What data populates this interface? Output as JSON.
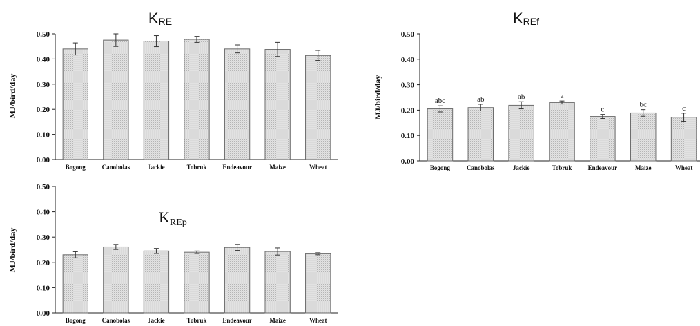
{
  "chart_data": [
    {
      "type": "bar",
      "title": "K",
      "title_sub": "RE",
      "ylabel": "MJ/bird/day",
      "categories": [
        "Bogong",
        "Canobolas",
        "Jackie",
        "Tobruk",
        "Endeavour",
        "Maize",
        "Wheat"
      ],
      "values": [
        0.44,
        0.475,
        0.471,
        0.478,
        0.44,
        0.438,
        0.414
      ],
      "errors": [
        0.024,
        0.025,
        0.022,
        0.012,
        0.016,
        0.028,
        0.02
      ],
      "ylim": [
        0,
        0.5
      ],
      "yticks": [
        "0.00",
        "0.10",
        "0.20",
        "0.30",
        "0.40",
        "0.50"
      ],
      "bar_color": "#d6d6d6",
      "annotations": []
    },
    {
      "type": "bar",
      "title": "K",
      "title_sub": "REf",
      "ylabel": "MJ/bird/day",
      "categories": [
        "Bogong",
        "Canobolas",
        "Jackie",
        "Tobruk",
        "Endeavour",
        "Maize",
        "Wheat"
      ],
      "values": [
        0.205,
        0.21,
        0.219,
        0.23,
        0.175,
        0.189,
        0.172
      ],
      "errors": [
        0.012,
        0.013,
        0.014,
        0.006,
        0.008,
        0.013,
        0.016
      ],
      "ylim": [
        0,
        0.5
      ],
      "yticks": [
        "0.00",
        "0.10",
        "0.20",
        "0.30",
        "0.40",
        "0.50"
      ],
      "bar_color": "#d6d6d6",
      "annotations": [
        "abc",
        "ab",
        "ab",
        "a",
        "c",
        "bc",
        "c"
      ]
    },
    {
      "type": "bar",
      "title": "K",
      "title_sub": "REp",
      "ylabel": "MJ/bird/day",
      "categories": [
        "Bogong",
        "Canobolas",
        "Jackie",
        "Tobruk",
        "Endeavour",
        "Maize",
        "Wheat"
      ],
      "values": [
        0.23,
        0.261,
        0.245,
        0.24,
        0.259,
        0.243,
        0.234
      ],
      "errors": [
        0.012,
        0.01,
        0.01,
        0.005,
        0.012,
        0.014,
        0.004
      ],
      "ylim": [
        0,
        0.5
      ],
      "yticks": [
        "0.00",
        "0.10",
        "0.20",
        "0.30",
        "0.40",
        "0.50"
      ],
      "bar_color": "#d6d6d6",
      "annotations": []
    }
  ]
}
